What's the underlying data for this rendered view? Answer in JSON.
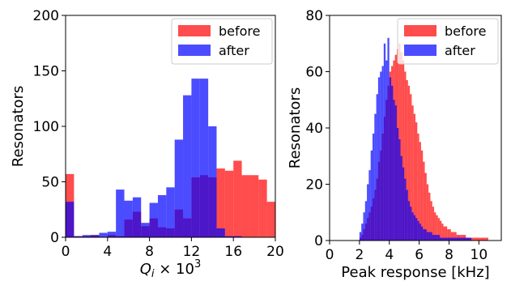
{
  "chart_data": [
    {
      "type": "bar",
      "xlabel_html": "Q_i × 10^3",
      "ylabel": "Resonators",
      "xlim": [
        0,
        20
      ],
      "ylim": [
        0,
        200
      ],
      "xticks": [
        "0",
        "4",
        "8",
        "12",
        "16",
        "20"
      ],
      "yticks": [
        "0",
        "50",
        "100",
        "150",
        "200"
      ],
      "legend": {
        "placement": "top-right",
        "entries": [
          "before",
          "after"
        ]
      },
      "bin_width": 0.8,
      "bin_start": 0,
      "series": [
        {
          "name": "before",
          "color": "#ff0000",
          "values": [
            57,
            1,
            1,
            2,
            0,
            2,
            1,
            16,
            23,
            10,
            17,
            9,
            8,
            25,
            17,
            54,
            56,
            54,
            62,
            60,
            69,
            56,
            56,
            52,
            32,
            4,
            0
          ]
        },
        {
          "name": "after",
          "color": "#0000ff",
          "values": [
            32,
            1,
            2,
            2,
            4,
            5,
            43,
            33,
            36,
            13,
            31,
            38,
            45,
            88,
            128,
            143,
            143,
            100,
            8,
            1,
            1,
            0,
            0,
            0,
            0,
            0,
            0
          ]
        }
      ]
    },
    {
      "type": "bar",
      "xlabel": "Peak response [kHz]",
      "ylabel": "Resonators",
      "xlim": [
        0,
        11.5
      ],
      "ylim": [
        0,
        80
      ],
      "xticks": [
        "0",
        "2",
        "4",
        "6",
        "8",
        "10"
      ],
      "yticks": [
        "0",
        "20",
        "40",
        "60",
        "80"
      ],
      "legend": {
        "placement": "top-right",
        "entries": [
          "before",
          "after"
        ]
      },
      "bin_start": 2.0,
      "bin_width": 0.125,
      "series": [
        {
          "name": "before",
          "color": "#ff0000",
          "values": [
            1,
            2,
            4,
            6,
            8,
            10,
            12,
            15,
            18,
            22,
            28,
            32,
            38,
            44,
            50,
            55,
            60,
            62,
            64,
            66,
            68,
            70,
            67,
            64,
            60,
            57,
            55,
            52,
            48,
            45,
            42,
            38,
            35,
            32,
            28,
            24,
            20,
            17,
            14,
            12,
            10,
            9,
            8,
            7,
            6,
            5,
            5,
            4,
            4,
            3,
            3,
            3,
            2,
            2,
            2,
            2,
            2,
            1,
            1,
            1,
            1,
            1,
            1,
            1,
            1,
            1,
            1,
            1,
            1
          ]
        },
        {
          "name": "after",
          "color": "#0000ff",
          "values": [
            3,
            6,
            10,
            14,
            20,
            25,
            32,
            38,
            45,
            52,
            58,
            60,
            62,
            70,
            64,
            72,
            58,
            55,
            50,
            48,
            40,
            36,
            30,
            26,
            22,
            18,
            14,
            12,
            10,
            9,
            8,
            7,
            6,
            5,
            4,
            4,
            3,
            3,
            3,
            2,
            2,
            2,
            2,
            1,
            1,
            1,
            1,
            1,
            1,
            1,
            1,
            1,
            1,
            1,
            1,
            1,
            1,
            1,
            1,
            1,
            0,
            0,
            0,
            0,
            0,
            0,
            0,
            0,
            0
          ]
        }
      ]
    }
  ]
}
